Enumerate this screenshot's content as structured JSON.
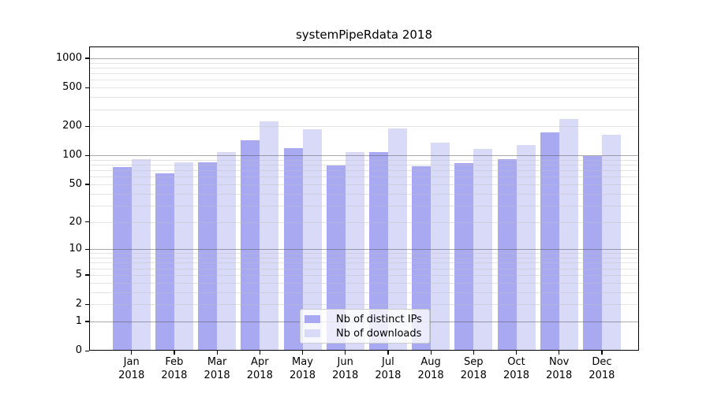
{
  "chart_data": {
    "type": "bar",
    "title": "systemPipeRdata 2018",
    "x_year": "2018",
    "categories": [
      "Jan",
      "Feb",
      "Mar",
      "Apr",
      "May",
      "Jun",
      "Jul",
      "Aug",
      "Sep",
      "Oct",
      "Nov",
      "Dec"
    ],
    "series": [
      {
        "name": "Nb of distinct IPs",
        "color": "#a9a9f2",
        "values": [
          76,
          65,
          85,
          142,
          118,
          79,
          108,
          77,
          83,
          91,
          174,
          99
        ]
      },
      {
        "name": "Nb of downloads",
        "color": "#d9d9f8",
        "values": [
          91,
          84,
          109,
          223,
          187,
          109,
          191,
          135,
          117,
          129,
          238,
          164
        ]
      }
    ],
    "yticks": [
      0,
      1,
      2,
      5,
      10,
      20,
      50,
      100,
      200,
      500,
      1000
    ],
    "ylim": [
      0,
      1320
    ],
    "yscale": "log10(1+y)",
    "grid": {
      "major_lines": [
        1,
        10,
        100,
        1000
      ],
      "minor_multiples_per_decade": [
        2,
        3,
        4,
        5,
        6,
        7,
        8,
        9
      ]
    },
    "legend_position": "lower center",
    "colors": {
      "major_grid": "#b0b0b0",
      "minor_grid": "#e5e5e5",
      "axis": "#000000",
      "background": "#ffffff"
    }
  }
}
